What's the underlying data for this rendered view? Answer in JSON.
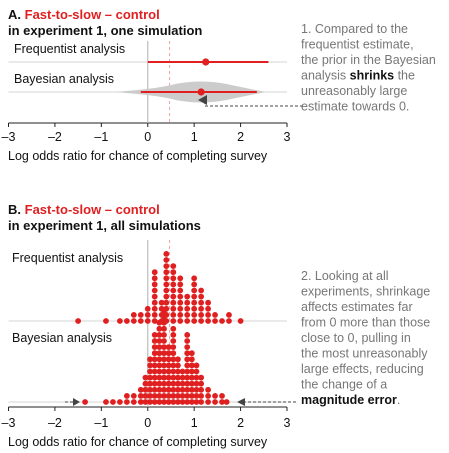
{
  "colors": {
    "accent": "#e02020",
    "text": "#111111",
    "annotation": "#777777",
    "band": "#cccccc",
    "axis": "#bbbbbb"
  },
  "chart_data": [
    {
      "type": "scatter",
      "panel_letter": "A.",
      "title_red": "Fast-to-slow – control",
      "title_black": "in experiment 1, one simulation",
      "xlabel": "Log odds ratio for chance of completing survey",
      "xlim": [
        -3,
        3
      ],
      "xticks": [
        "–3",
        "–2",
        "–1",
        "0",
        "1",
        "2",
        "3"
      ],
      "rows": [
        {
          "label": "Frequentist analysis",
          "estimate": 1.25,
          "ci": [
            0.0,
            2.6
          ]
        },
        {
          "label": "Bayesian analysis",
          "estimate": 1.15,
          "ci": [
            -0.15,
            2.35
          ]
        }
      ],
      "annotation_lines": [
        [
          "1. Compared to the"
        ],
        [
          "frequentist estimate,"
        ],
        [
          "the prior in the Bayesian"
        ],
        [
          "analysis ",
          "shrinks",
          " the"
        ],
        [
          "unreasonably large"
        ],
        [
          "estimate towards 0."
        ]
      ]
    },
    {
      "type": "scatter",
      "panel_letter": "B.",
      "title_red": "Fast-to-slow – control",
      "title_black": "in experiment 1, all simulations",
      "xlabel": "Log odds ratio for chance of completing survey",
      "xlim": [
        -3,
        3
      ],
      "xticks": [
        "–3",
        "–2",
        "–1",
        "0",
        "1",
        "2",
        "3"
      ],
      "bin_width": 0.1,
      "series": [
        {
          "name": "Frequentist analysis",
          "bins": [
            -1.5,
            -0.9,
            -0.6,
            -0.45,
            -0.3,
            -0.15,
            0.0,
            0.15,
            0.3,
            0.4,
            0.55,
            0.7,
            0.85,
            1.0,
            1.15,
            1.3,
            1.45,
            1.6,
            1.75,
            2.0
          ],
          "counts": [
            1,
            1,
            1,
            1,
            2,
            2,
            3,
            9,
            4,
            12,
            10,
            8,
            5,
            8,
            6,
            4,
            2,
            1,
            2,
            1
          ]
        },
        {
          "name": "Bayesian analysis",
          "bins": [
            -1.35,
            -0.9,
            -0.75,
            -0.6,
            -0.45,
            -0.3,
            -0.15,
            -0.05,
            0.05,
            0.15,
            0.25,
            0.35,
            0.45,
            0.55,
            0.65,
            0.75,
            0.85,
            0.95,
            1.05,
            1.15,
            1.3,
            1.45,
            1.6,
            1.7
          ],
          "counts": [
            1,
            1,
            1,
            1,
            2,
            2,
            3,
            5,
            8,
            12,
            14,
            16,
            10,
            13,
            8,
            6,
            12,
            9,
            7,
            5,
            3,
            2,
            2,
            1
          ]
        }
      ],
      "annotation_lines": [
        [
          "2. Looking at all"
        ],
        [
          "experiments, shrinkage"
        ],
        [
          "affects estimates far"
        ],
        [
          "from 0 more than those"
        ],
        [
          "close to 0, pulling in"
        ],
        [
          "the most unreasonably"
        ],
        [
          "large effects, reducing"
        ],
        [
          "the change of a"
        ],
        [
          "magnitude error",
          "."
        ]
      ]
    }
  ]
}
